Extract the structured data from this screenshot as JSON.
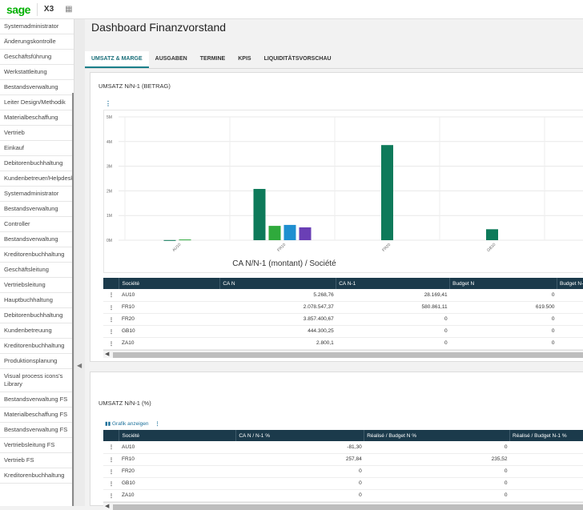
{
  "app": {
    "logo": "sage",
    "product": "X3"
  },
  "sidebar": {
    "items": [
      "Systemadministrator",
      "Änderungskontrolle",
      "Geschäftsführung",
      "Werkstattleitung",
      "Bestandsverwaltung",
      "Leiter Design/Methodik",
      "Materialbeschaffung",
      "Vertrieb",
      "Einkauf",
      "Debitorenbuchhaltung",
      "Kundenbetreuer/Helpdesk",
      "Systemadministrator",
      "Bestandsverwaltung",
      "Controller",
      "Bestandsverwaltung",
      "Kreditorenbuchhaltung",
      "Geschäftsleitung",
      "Vertriebsleitung",
      "Hauptbuchhaltung",
      "Debitorenbuchhaltung",
      "Kundenbetreuung",
      "Kreditorenbuchhaltung",
      "Produktionsplanung",
      "Visual process icons's Library",
      "Bestandsverwaltung FS",
      "Materialbeschaffung FS",
      "Bestandsverwaltung FS",
      "Vertriebsleitung FS",
      "Vertrieb FS",
      "Kreditorenbuchhaltung"
    ]
  },
  "page": {
    "title": "Dashboard Finanzvorstand"
  },
  "tabs": [
    "UMSATZ & MARGE",
    "AUSGABEN",
    "TERMINE",
    "KPIS",
    "LIQUIDITÄTSVORSCHAU"
  ],
  "card1": {
    "title": "UMSATZ N/N-1 (BETRAG)",
    "table": {
      "headers": [
        "Société",
        "CA N",
        "CA N-1",
        "Budget N",
        "Budget N-"
      ],
      "rows": [
        [
          "AU10",
          "5.268,76",
          "28.169,41",
          "0",
          ""
        ],
        [
          "FR10",
          "2.078.547,37",
          "580.861,11",
          "619.500",
          ""
        ],
        [
          "FR20",
          "3.857.400,67",
          "0",
          "0",
          ""
        ],
        [
          "GB10",
          "444.300,25",
          "0",
          "0",
          ""
        ],
        [
          "ZA10",
          "2.800,1",
          "0",
          "0",
          ""
        ]
      ]
    }
  },
  "chart_data": {
    "type": "bar",
    "title": "CA N/N-1 (montant) / Société",
    "categories": [
      "AU10",
      "FR10",
      "FR20",
      "GB10",
      "ZA10"
    ],
    "y_ticks": [
      "0M",
      "1M",
      "2M",
      "3M",
      "4M",
      "5M"
    ],
    "ylim": [
      0,
      5000000
    ],
    "grid": true,
    "series": [
      {
        "values": [
          5268.76,
          2078547.37,
          3857400.67,
          444300.25,
          2800.1
        ],
        "color": "#0e7a5a"
      },
      {
        "values": [
          28169.41,
          580861.11,
          0,
          0,
          0
        ],
        "color": "#2faa3c"
      },
      {
        "values": [
          0,
          619500,
          0,
          0,
          0
        ],
        "color": "#1f8fd0"
      },
      {
        "values": [
          0,
          520000,
          0,
          0,
          0
        ],
        "color": "#6a3fb5"
      }
    ]
  },
  "card2": {
    "title": "UMSATZ N/N-1 (%)",
    "link": "Grafik anzeigen",
    "table": {
      "headers": [
        "Société",
        "CA N / N-1 %",
        "Réalisé / Budget N %",
        "Réalisé / Budget N-1 %"
      ],
      "rows": [
        [
          "AU10",
          "-81,30",
          "0",
          ""
        ],
        [
          "FR10",
          "257,84",
          "235,52",
          ""
        ],
        [
          "FR20",
          "0",
          "0",
          ""
        ],
        [
          "GB10",
          "0",
          "0",
          ""
        ],
        [
          "ZA10",
          "0",
          "0",
          ""
        ]
      ]
    }
  }
}
